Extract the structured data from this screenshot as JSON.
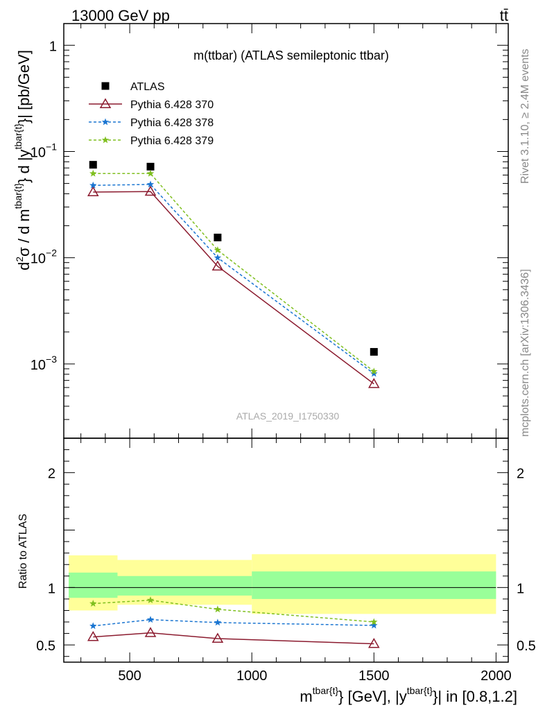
{
  "header": {
    "left_label": "13000 GeV pp",
    "right_label": "tt̄"
  },
  "side_labels": {
    "rivet": "Rivet 3.1.10, ≥ 2.4M events",
    "mcplots": "mcplots.cern.ch [arXiv:1306.3436]"
  },
  "chart_data": [
    {
      "type": "scatter",
      "panel": "main",
      "title": "m(ttbar) (ATLAS semileptonic ttbar)",
      "watermark": "ATLAS_2019_I1750330",
      "ylabel": "d²σ / d m^{tbar{t}} d |y^{tbar{t}}| [pb/GeV]",
      "ylabel_parts": {
        "a": "d",
        "b": "2",
        "c": "σ /  d m",
        "d": "tbar{t}",
        "e": "} d |y",
        "f": "tbar{t}",
        "g": "}| [pb/GeV]"
      },
      "yscale": "log",
      "xlim": [
        230,
        2050
      ],
      "ylim": [
        0.0002,
        1.6
      ],
      "ytick_labels": [
        {
          "value": 1,
          "base": "1",
          "exp": ""
        },
        {
          "value": 0.1,
          "base": "10",
          "exp": "−1"
        },
        {
          "value": 0.01,
          "base": "10",
          "exp": "−2"
        },
        {
          "value": 0.001,
          "base": "10",
          "exp": "−3"
        }
      ],
      "legend_position": "top-left",
      "x_bins": [
        [
          250,
          450
        ],
        [
          450,
          700
        ],
        [
          700,
          1000
        ],
        [
          1000,
          2000
        ]
      ],
      "x": [
        350,
        585,
        860,
        1500
      ],
      "series": [
        {
          "name": "ATLAS",
          "values": [
            0.075,
            0.072,
            0.0155,
            0.0013
          ],
          "color": "#000000",
          "marker": "square",
          "line": "none"
        },
        {
          "name": "Pythia 6.428 370",
          "values": [
            0.0415,
            0.042,
            0.0083,
            0.00065
          ],
          "color": "#8b1a2e",
          "marker": "triangle-open",
          "line": "solid"
        },
        {
          "name": "Pythia 6.428 378",
          "values": [
            0.048,
            0.049,
            0.01,
            0.00081
          ],
          "color": "#1a75d1",
          "marker": "star",
          "line": "dashed"
        },
        {
          "name": "Pythia 6.428 379",
          "values": [
            0.062,
            0.062,
            0.0118,
            0.00085
          ],
          "color": "#7fbf1f",
          "marker": "star",
          "line": "dashed"
        }
      ]
    },
    {
      "type": "scatter",
      "panel": "ratio",
      "ylabel": "Ratio to ATLAS",
      "xlabel": "m^{tbar{t}} [GeV], |y^{tbar{t}}| in [0.8,1.2]",
      "xlabel_parts": {
        "a": "m",
        "b": "tbar{t}",
        "c": "} [GeV], |y",
        "d": "tbar{t}",
        "e": "}| in [0.8,1.2]"
      },
      "xlim": [
        230,
        2050
      ],
      "ylim": [
        0.35,
        2.3
      ],
      "xtick_labels": [
        500,
        1000,
        1500,
        2000
      ],
      "ytick_labels": [
        "0.5",
        "1",
        "2"
      ],
      "ytick_values": [
        0.5,
        1,
        2
      ],
      "bands": {
        "x_bins": [
          [
            250,
            450
          ],
          [
            450,
            1000
          ],
          [
            1000,
            2000
          ]
        ],
        "yellow": [
          [
            0.8,
            1.28
          ],
          [
            0.85,
            1.24
          ],
          [
            0.77,
            1.29
          ]
        ],
        "green": [
          [
            0.91,
            1.13
          ],
          [
            0.93,
            1.1
          ],
          [
            0.9,
            1.14
          ]
        ],
        "yellow_color": "#ffff99",
        "green_color": "#99ff99"
      },
      "x": [
        350,
        585,
        860,
        1500
      ],
      "series": [
        {
          "name": "Pythia 6.428 370",
          "values": [
            0.57,
            0.605,
            0.555,
            0.51
          ],
          "color": "#8b1a2e",
          "marker": "triangle-open",
          "line": "solid"
        },
        {
          "name": "Pythia 6.428 378",
          "values": [
            0.665,
            0.72,
            0.695,
            0.67
          ],
          "color": "#1a75d1",
          "marker": "star",
          "line": "dashed"
        },
        {
          "name": "Pythia 6.428 379",
          "values": [
            0.86,
            0.89,
            0.81,
            0.7
          ],
          "color": "#7fbf1f",
          "marker": "star",
          "line": "dashed"
        }
      ]
    }
  ]
}
